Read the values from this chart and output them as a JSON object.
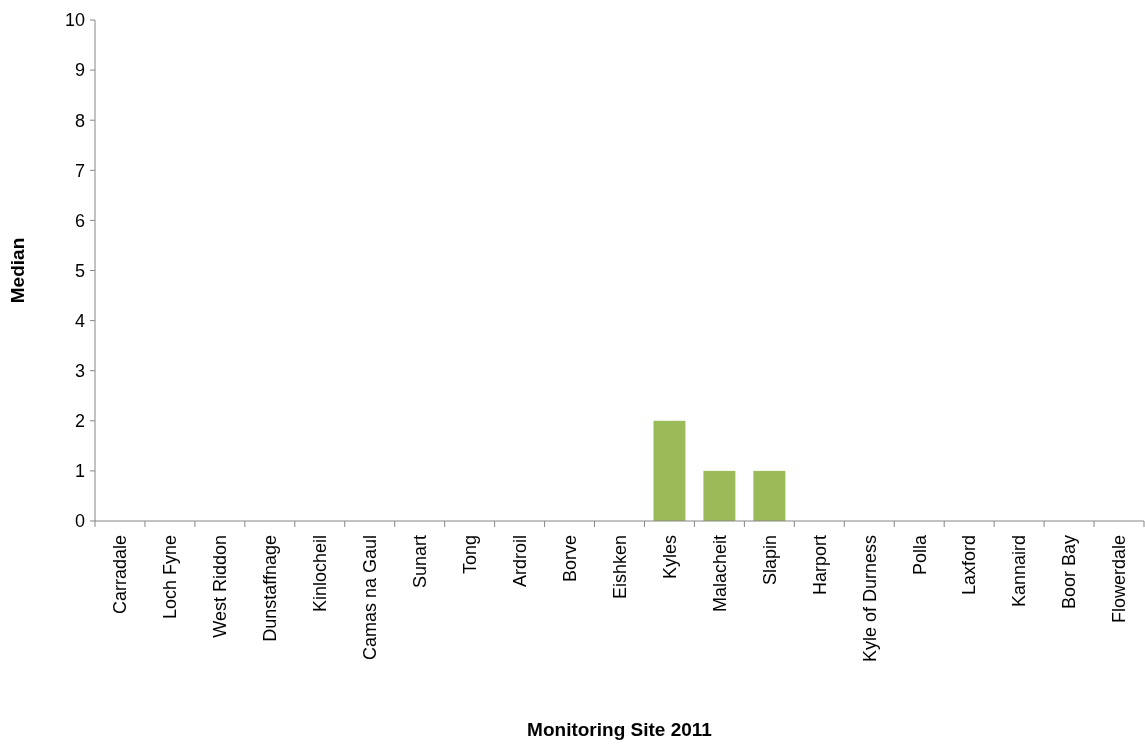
{
  "chart_data": {
    "type": "bar",
    "xlabel": "Monitoring Site 2011",
    "ylabel": "Median",
    "categories": [
      "Carradale",
      "Loch Fyne",
      "West Riddon",
      "Dunstaffnage",
      "Kinlocheil",
      "Camas na Gaul",
      "Sunart",
      "Tong",
      "Ardroil",
      "Borve",
      "Eishken",
      "Kyles",
      "Malacheit",
      "Slapin",
      "Harport",
      "Kyle of Durness",
      "Polla",
      "Laxford",
      "Kannaird",
      "Boor Bay",
      "Flowerdale"
    ],
    "values": [
      0,
      0,
      0,
      0,
      0,
      0,
      0,
      0,
      0,
      0,
      0,
      2,
      1,
      1,
      0,
      0,
      0,
      0,
      0,
      0,
      0
    ],
    "color": "#9bbb59",
    "ylim": [
      0,
      10
    ],
    "yticks": [
      0,
      1,
      2,
      3,
      4,
      5,
      6,
      7,
      8,
      9,
      10
    ],
    "grid": false
  }
}
